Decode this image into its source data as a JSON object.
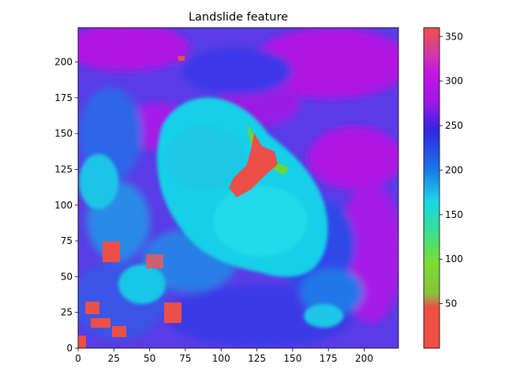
{
  "chart_data": {
    "type": "heatmap",
    "title": "Landslide feature",
    "xlabel": "",
    "ylabel": "",
    "xlim": [
      0,
      224
    ],
    "ylim": [
      0,
      224
    ],
    "x_ticks": [
      0,
      25,
      50,
      75,
      100,
      125,
      150,
      175,
      200
    ],
    "y_ticks": [
      0,
      25,
      50,
      75,
      100,
      125,
      150,
      175,
      200
    ],
    "colorbar": {
      "range": [
        0,
        360
      ],
      "ticks": [
        50,
        100,
        150,
        200,
        250,
        300,
        350
      ],
      "colormap": "hsv-like: red, orange, green, cyan, blue, violet, purple, magenta, red"
    },
    "features": [
      {
        "name": "landslide body (cyan ~190)",
        "x_range": [
          45,
          175
        ],
        "y_range": [
          45,
          175
        ],
        "value": 190
      },
      {
        "name": "landslide head scarp (red ~10)",
        "x": [
          105,
          140
        ],
        "y": [
          105,
          150
        ],
        "value": 10
      },
      {
        "name": "small red patches lower-left",
        "x": [
          [
            10,
            35
          ],
          [
            55,
            75
          ],
          [
            15,
            30
          ]
        ],
        "y": [
          [
            55,
            75
          ],
          [
            15,
            30
          ],
          [
            5,
            20
          ]
        ],
        "value": 10
      },
      {
        "name": "background (blue / purple 240-320)",
        "value": 280
      }
    ],
    "grid": false
  }
}
